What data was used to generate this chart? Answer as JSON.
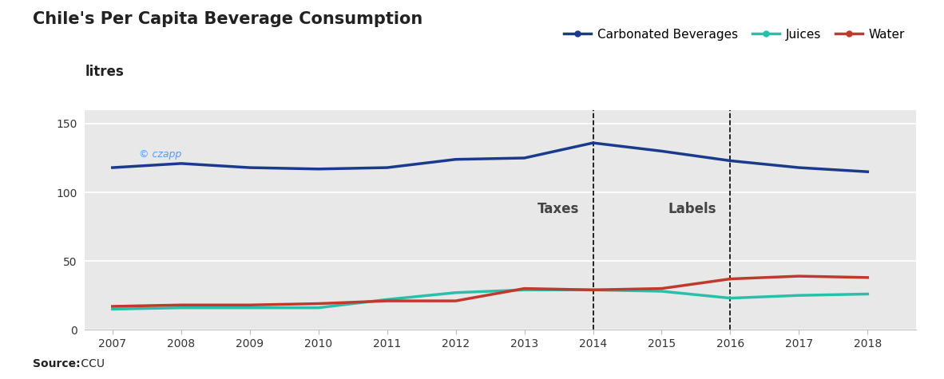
{
  "title": "Chile's Per Capita Beverage Consumption",
  "ylabel": "litres",
  "source_bold": "Source:",
  "source_normal": " CCU",
  "copyright_text": "© czapp",
  "years": [
    2007,
    2008,
    2009,
    2010,
    2011,
    2012,
    2013,
    2014,
    2015,
    2016,
    2017,
    2018
  ],
  "carbonated": [
    118,
    121,
    118,
    117,
    118,
    124,
    125,
    136,
    130,
    123,
    118,
    115
  ],
  "juices": [
    15,
    16,
    16,
    16,
    22,
    27,
    29,
    29,
    28,
    23,
    25,
    26
  ],
  "water": [
    17,
    18,
    18,
    19,
    21,
    21,
    30,
    29,
    30,
    37,
    39,
    38
  ],
  "carbonated_color": "#1a3a8c",
  "juices_color": "#2abfaa",
  "water_color": "#c0392b",
  "background_color": "#e8e8e8",
  "fig_background": "#ffffff",
  "vline_years": [
    2014,
    2016
  ],
  "vline_labels": [
    "Taxes",
    "Labels"
  ],
  "ylim": [
    0,
    160
  ],
  "yticks": [
    0,
    50,
    100,
    150
  ],
  "title_fontsize": 15,
  "ylabel_fontsize": 12,
  "legend_fontsize": 11,
  "tick_fontsize": 10,
  "annotation_fontsize": 12,
  "source_fontsize": 10,
  "line_width": 2.5,
  "copyright_color": "#5599ff",
  "annotation_color": "#444444"
}
